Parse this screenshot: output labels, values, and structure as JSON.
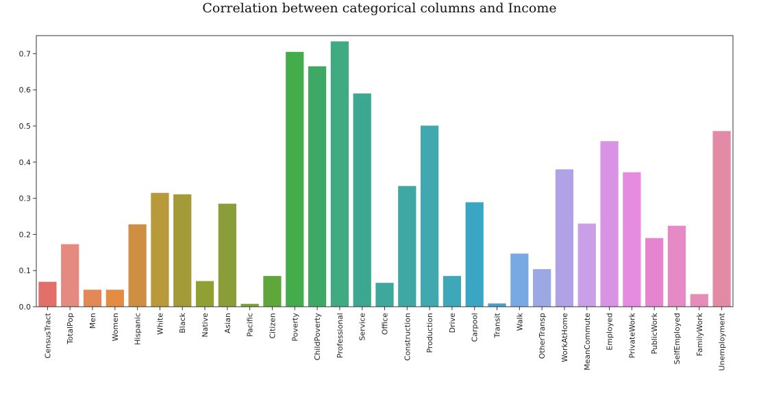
{
  "chart_data": {
    "type": "bar",
    "title": "Correlation between categorical columns and Income",
    "xlabel": "",
    "ylabel": "",
    "ylim": [
      0,
      0.75
    ],
    "yticks": [
      "0.0",
      "0.1",
      "0.2",
      "0.3",
      "0.4",
      "0.5",
      "0.6",
      "0.7"
    ],
    "grid": false,
    "categories": [
      "CensusTract",
      "TotalPop",
      "Men",
      "Women",
      "Hispanic",
      "White",
      "Black",
      "Native",
      "Asian",
      "Pacific",
      "Citizen",
      "Poverty",
      "ChildPoverty",
      "Professional",
      "Service",
      "Office",
      "Construction",
      "Production",
      "Drive",
      "Carpool",
      "Transit",
      "Walk",
      "OtherTransp",
      "WorkAtHome",
      "MeanCommute",
      "Employed",
      "PrivateWork",
      "PublicWork",
      "SelfEmployed",
      "FamilyWork",
      "Unemployment"
    ],
    "values": [
      0.069,
      0.173,
      0.047,
      0.047,
      0.228,
      0.315,
      0.311,
      0.071,
      0.285,
      0.008,
      0.085,
      0.705,
      0.665,
      0.734,
      0.59,
      0.066,
      0.334,
      0.501,
      0.085,
      0.289,
      0.009,
      0.147,
      0.104,
      0.38,
      0.23,
      0.458,
      0.372,
      0.19,
      0.224,
      0.035,
      0.486
    ],
    "colors": [
      "#e36f6b",
      "#e58a80",
      "#e38958",
      "#e38c42",
      "#cf8f42",
      "#b89a3a",
      "#a39a38",
      "#91a035",
      "#8a9d38",
      "#78a534",
      "#5fa73a",
      "#44ac4b",
      "#3da965",
      "#40ab82",
      "#3ca892",
      "#3fa89c",
      "#3ea8a4",
      "#40a8ae",
      "#3ea7ba",
      "#3aa6c4",
      "#4aa0cd",
      "#79a9e2",
      "#9ca8e4",
      "#b1a2e8",
      "#c99fe8",
      "#d993e4",
      "#e58be0",
      "#e584cf",
      "#e58ac5",
      "#e58db8",
      "#e28aa6"
    ]
  }
}
